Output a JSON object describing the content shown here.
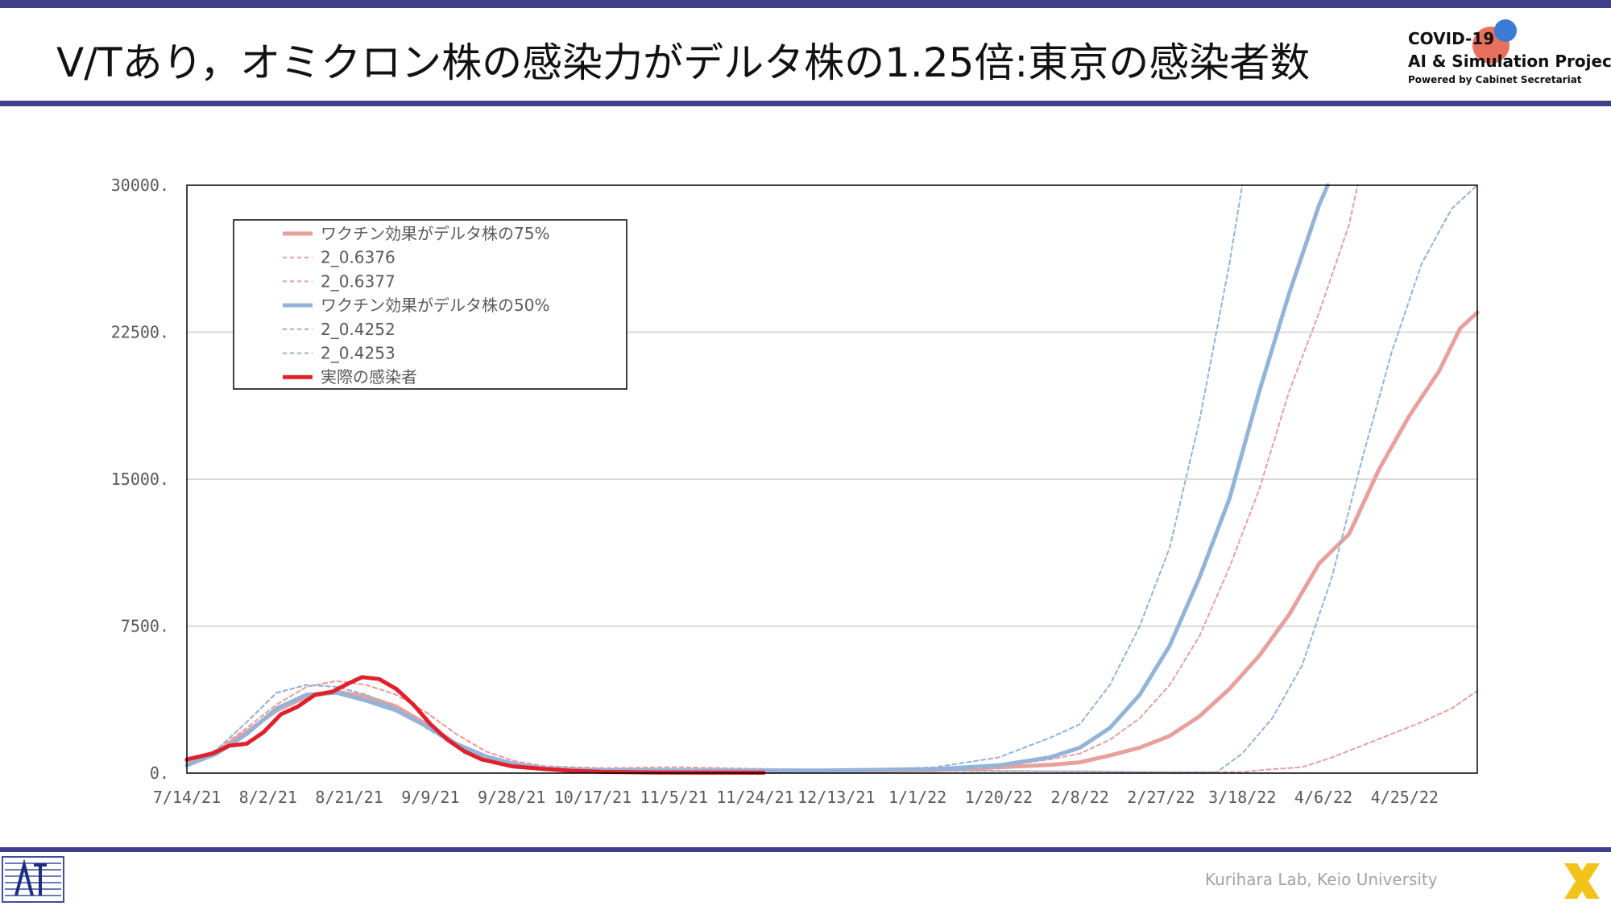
{
  "slide": {
    "title": "V/Tあり，オミクロン株の感染力がデルタ株の1.25倍:東京の感染者数",
    "logo": {
      "line1": "COVID-19",
      "line2": "AI & Simulation Project",
      "line3": "Powered by Cabinet Secretariat"
    },
    "footer": "Kurihara Lab, Keio University"
  },
  "colors": {
    "accent": "#3f3f8a",
    "red_series": "#e8a09e",
    "blue_series": "#93b3d8",
    "actual": "#e0202a"
  },
  "chart_data": {
    "type": "line",
    "title": "",
    "xlabel": "",
    "ylabel": "",
    "ylim": [
      0,
      30000
    ],
    "yticks": [
      0,
      7500,
      15000,
      22500,
      30000
    ],
    "ytick_labels": [
      "0.",
      "7500.",
      "15000.",
      "22500.",
      "30000."
    ],
    "xlim": [
      "2021-07-14",
      "2022-05-12"
    ],
    "xticks": [
      "2021-07-14",
      "2021-08-02",
      "2021-08-21",
      "2021-09-09",
      "2021-09-28",
      "2021-10-17",
      "2021-11-05",
      "2021-11-24",
      "2021-12-13",
      "2022-01-01",
      "2022-01-20",
      "2022-02-08",
      "2022-02-27",
      "2022-03-18",
      "2022-04-06",
      "2022-04-25"
    ],
    "xtick_labels": [
      "7/14/21",
      "8/2/21",
      "8/21/21",
      "9/9/21",
      "9/28/21",
      "10/17/21",
      "11/5/21",
      "11/24/21",
      "12/13/21",
      "1/1/22",
      "1/20/22",
      "2/8/22",
      "2/27/22",
      "3/18/22",
      "4/6/22",
      "4/25/22"
    ],
    "grid": "horizontal",
    "legend_position": "top-left",
    "series": [
      {
        "name": "ワクチン効果がデルタ株の75%",
        "color": "#e8a09e",
        "style": "solid",
        "width": 5,
        "points": [
          [
            "2021-07-14",
            600
          ],
          [
            "2021-07-21",
            1100
          ],
          [
            "2021-07-28",
            2100
          ],
          [
            "2021-08-04",
            3200
          ],
          [
            "2021-08-11",
            3900
          ],
          [
            "2021-08-18",
            4150
          ],
          [
            "2021-08-25",
            3900
          ],
          [
            "2021-09-01",
            3400
          ],
          [
            "2021-09-08",
            2500
          ],
          [
            "2021-09-15",
            1500
          ],
          [
            "2021-09-22",
            800
          ],
          [
            "2021-09-29",
            400
          ],
          [
            "2021-10-06",
            220
          ],
          [
            "2021-10-20",
            120
          ],
          [
            "2021-11-10",
            100
          ],
          [
            "2021-12-10",
            100
          ],
          [
            "2022-01-05",
            150
          ],
          [
            "2022-01-20",
            300
          ],
          [
            "2022-02-01",
            420
          ],
          [
            "2022-02-08",
            550
          ],
          [
            "2022-02-15",
            900
          ],
          [
            "2022-02-22",
            1300
          ],
          [
            "2022-03-01",
            1900
          ],
          [
            "2022-03-08",
            2900
          ],
          [
            "2022-03-15",
            4300
          ],
          [
            "2022-03-22",
            6000
          ],
          [
            "2022-03-29",
            8100
          ],
          [
            "2022-04-05",
            10700
          ],
          [
            "2022-04-12",
            12200
          ],
          [
            "2022-04-19",
            15500
          ],
          [
            "2022-04-26",
            18200
          ],
          [
            "2022-05-03",
            20500
          ],
          [
            "2022-05-08",
            22700
          ],
          [
            "2022-05-12",
            23500
          ]
        ]
      },
      {
        "name": "2_0.6376",
        "color": "#e8a09e",
        "style": "dashed",
        "width": 2,
        "points": [
          [
            "2021-07-14",
            500
          ],
          [
            "2021-07-21",
            1200
          ],
          [
            "2021-07-28",
            2300
          ],
          [
            "2021-08-04",
            3500
          ],
          [
            "2021-08-11",
            4400
          ],
          [
            "2021-08-18",
            4700
          ],
          [
            "2021-08-25",
            4500
          ],
          [
            "2021-09-01",
            4000
          ],
          [
            "2021-09-08",
            3100
          ],
          [
            "2021-09-15",
            2000
          ],
          [
            "2021-09-22",
            1100
          ],
          [
            "2021-09-29",
            600
          ],
          [
            "2021-10-06",
            350
          ],
          [
            "2021-10-20",
            250
          ],
          [
            "2021-11-05",
            300
          ],
          [
            "2021-11-24",
            220
          ],
          [
            "2021-12-13",
            160
          ],
          [
            "2022-01-01",
            120
          ],
          [
            "2022-01-20",
            100
          ],
          [
            "2022-02-08",
            100
          ],
          [
            "2022-02-27",
            50
          ],
          [
            "2022-03-18",
            60
          ],
          [
            "2022-03-25",
            200
          ],
          [
            "2022-04-01",
            300
          ],
          [
            "2022-04-08",
            800
          ],
          [
            "2022-04-15",
            1400
          ],
          [
            "2022-04-22",
            2000
          ],
          [
            "2022-04-29",
            2600
          ],
          [
            "2022-05-06",
            3300
          ],
          [
            "2022-05-12",
            4200
          ]
        ]
      },
      {
        "name": "2_0.6377",
        "color": "#e8a09e",
        "style": "dashed",
        "width": 2,
        "points": [
          [
            "2021-07-14",
            500
          ],
          [
            "2021-07-21",
            1200
          ],
          [
            "2021-07-28",
            2300
          ],
          [
            "2021-08-04",
            3500
          ],
          [
            "2021-08-11",
            4400
          ],
          [
            "2021-08-18",
            4700
          ],
          [
            "2021-08-25",
            4500
          ],
          [
            "2021-09-01",
            4000
          ],
          [
            "2021-09-08",
            3100
          ],
          [
            "2021-09-15",
            2000
          ],
          [
            "2021-09-22",
            1100
          ],
          [
            "2021-09-29",
            600
          ],
          [
            "2021-10-06",
            350
          ],
          [
            "2021-10-20",
            250
          ],
          [
            "2021-11-05",
            300
          ],
          [
            "2021-11-24",
            220
          ],
          [
            "2021-12-13",
            160
          ],
          [
            "2022-01-01",
            200
          ],
          [
            "2022-01-20",
            350
          ],
          [
            "2022-02-01",
            700
          ],
          [
            "2022-02-08",
            1000
          ],
          [
            "2022-02-15",
            1700
          ],
          [
            "2022-02-22",
            2800
          ],
          [
            "2022-03-01",
            4500
          ],
          [
            "2022-03-08",
            7000
          ],
          [
            "2022-03-15",
            10500
          ],
          [
            "2022-03-22",
            14500
          ],
          [
            "2022-03-29",
            19500
          ],
          [
            "2022-04-05",
            23500
          ],
          [
            "2022-04-12",
            28000
          ],
          [
            "2022-04-14",
            30000
          ]
        ]
      },
      {
        "name": "ワクチン効果がデルタ株の50%",
        "color": "#93b3d8",
        "style": "solid",
        "width": 5,
        "points": [
          [
            "2021-07-14",
            400
          ],
          [
            "2021-07-21",
            1000
          ],
          [
            "2021-07-28",
            2000
          ],
          [
            "2021-08-04",
            3300
          ],
          [
            "2021-08-11",
            4000
          ],
          [
            "2021-08-18",
            4100
          ],
          [
            "2021-08-25",
            3700
          ],
          [
            "2021-09-01",
            3200
          ],
          [
            "2021-09-08",
            2400
          ],
          [
            "2021-09-15",
            1500
          ],
          [
            "2021-09-22",
            850
          ],
          [
            "2021-09-29",
            450
          ],
          [
            "2021-10-06",
            230
          ],
          [
            "2021-10-20",
            150
          ],
          [
            "2021-11-10",
            130
          ],
          [
            "2021-12-10",
            130
          ],
          [
            "2022-01-05",
            200
          ],
          [
            "2022-01-20",
            400
          ],
          [
            "2022-02-01",
            800
          ],
          [
            "2022-02-08",
            1300
          ],
          [
            "2022-02-15",
            2300
          ],
          [
            "2022-02-22",
            4000
          ],
          [
            "2022-03-01",
            6500
          ],
          [
            "2022-03-08",
            10000
          ],
          [
            "2022-03-15",
            14000
          ],
          [
            "2022-03-22",
            19500
          ],
          [
            "2022-03-29",
            24500
          ],
          [
            "2022-04-05",
            29000
          ],
          [
            "2022-04-07",
            30000
          ]
        ]
      },
      {
        "name": "2_0.4252",
        "color": "#93b3d8",
        "style": "dashed",
        "width": 2,
        "points": [
          [
            "2021-07-14",
            400
          ],
          [
            "2021-07-21",
            1200
          ],
          [
            "2021-07-28",
            2600
          ],
          [
            "2021-08-04",
            4100
          ],
          [
            "2021-08-11",
            4500
          ],
          [
            "2021-08-18",
            4400
          ],
          [
            "2021-08-25",
            4000
          ],
          [
            "2021-09-01",
            3300
          ],
          [
            "2021-09-08",
            2300
          ],
          [
            "2021-09-15",
            1400
          ],
          [
            "2021-09-22",
            750
          ],
          [
            "2021-09-29",
            380
          ],
          [
            "2021-10-06",
            220
          ],
          [
            "2021-10-20",
            170
          ],
          [
            "2021-11-10",
            140
          ],
          [
            "2021-12-10",
            140
          ],
          [
            "2022-01-05",
            300
          ],
          [
            "2022-01-20",
            800
          ],
          [
            "2022-02-01",
            1800
          ],
          [
            "2022-02-08",
            2500
          ],
          [
            "2022-02-15",
            4500
          ],
          [
            "2022-02-22",
            7500
          ],
          [
            "2022-03-01",
            11500
          ],
          [
            "2022-03-08",
            18000
          ],
          [
            "2022-03-15",
            26000
          ],
          [
            "2022-03-18",
            30000
          ]
        ]
      },
      {
        "name": "2_0.4253",
        "color": "#93b3d8",
        "style": "dashed",
        "width": 2,
        "points": [
          [
            "2021-07-14",
            400
          ],
          [
            "2021-07-21",
            1200
          ],
          [
            "2021-07-28",
            2600
          ],
          [
            "2021-08-04",
            4100
          ],
          [
            "2021-08-11",
            4500
          ],
          [
            "2021-08-18",
            4400
          ],
          [
            "2021-08-25",
            4000
          ],
          [
            "2021-09-01",
            3300
          ],
          [
            "2021-09-08",
            2300
          ],
          [
            "2021-09-15",
            1400
          ],
          [
            "2021-09-22",
            750
          ],
          [
            "2021-09-29",
            380
          ],
          [
            "2021-10-06",
            220
          ],
          [
            "2021-10-20",
            170
          ],
          [
            "2021-11-10",
            140
          ],
          [
            "2021-12-10",
            140
          ],
          [
            "2022-01-05",
            150
          ],
          [
            "2022-01-20",
            120
          ],
          [
            "2022-02-08",
            80
          ],
          [
            "2022-02-27",
            50
          ],
          [
            "2022-03-12",
            40
          ],
          [
            "2022-03-18",
            1000
          ],
          [
            "2022-03-25",
            2800
          ],
          [
            "2022-04-01",
            5500
          ],
          [
            "2022-04-08",
            10000
          ],
          [
            "2022-04-15",
            16000
          ],
          [
            "2022-04-22",
            21500
          ],
          [
            "2022-04-29",
            26000
          ],
          [
            "2022-05-06",
            28800
          ],
          [
            "2022-05-12",
            30000
          ]
        ]
      },
      {
        "name": "実際の感染者",
        "color": "#e0202a",
        "style": "solid",
        "width": 5,
        "points": [
          [
            "2021-07-14",
            700
          ],
          [
            "2021-07-20",
            1000
          ],
          [
            "2021-07-24",
            1400
          ],
          [
            "2021-07-28",
            1500
          ],
          [
            "2021-08-01",
            2100
          ],
          [
            "2021-08-05",
            3000
          ],
          [
            "2021-08-09",
            3400
          ],
          [
            "2021-08-13",
            4000
          ],
          [
            "2021-08-17",
            4150
          ],
          [
            "2021-08-21",
            4600
          ],
          [
            "2021-08-24",
            4900
          ],
          [
            "2021-08-28",
            4800
          ],
          [
            "2021-09-01",
            4300
          ],
          [
            "2021-09-05",
            3500
          ],
          [
            "2021-09-09",
            2500
          ],
          [
            "2021-09-13",
            1700
          ],
          [
            "2021-09-17",
            1100
          ],
          [
            "2021-09-21",
            700
          ],
          [
            "2021-09-28",
            350
          ],
          [
            "2021-10-05",
            220
          ],
          [
            "2021-10-12",
            120
          ],
          [
            "2021-10-20",
            60
          ],
          [
            "2021-11-01",
            30
          ],
          [
            "2021-11-26",
            20
          ]
        ]
      }
    ]
  }
}
